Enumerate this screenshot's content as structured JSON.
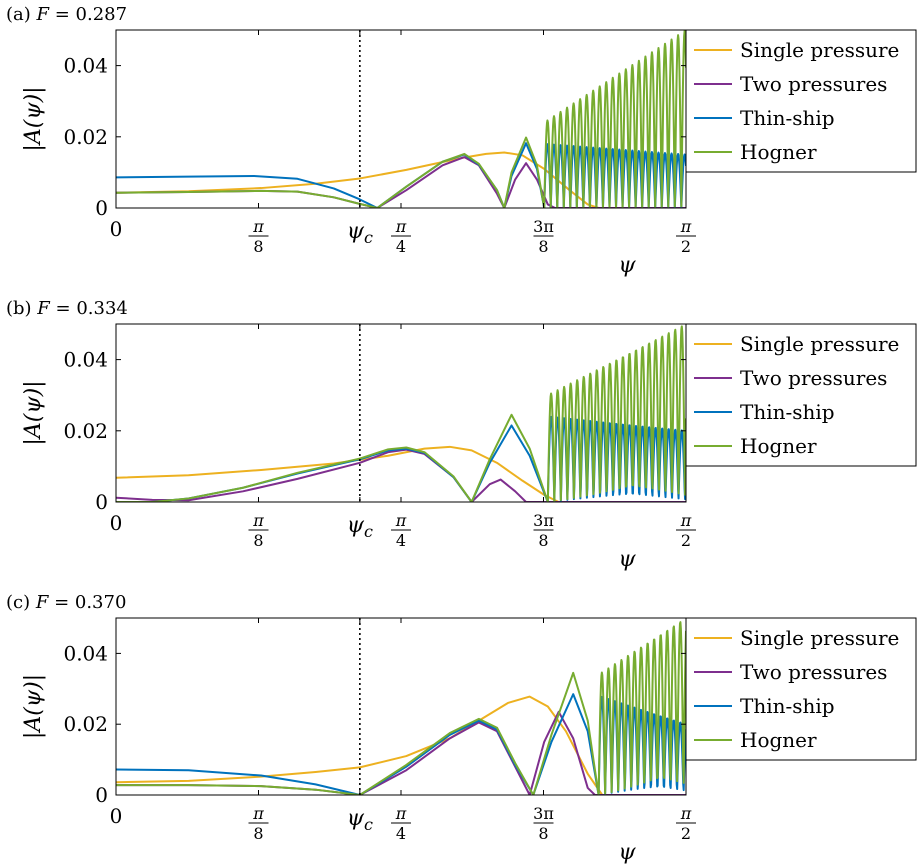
{
  "chart_data": [
    {
      "type": "line",
      "title": "(a) F = 0.287",
      "title_prefix": "(a) ",
      "title_var": "F",
      "title_value": " = 0.287",
      "xlabel": "ψ",
      "ylabel": "|A(ψ)|",
      "xlim": [
        0,
        1.5708
      ],
      "ylim": [
        0,
        0.05
      ],
      "x_ticks": [
        {
          "value": 0,
          "label": "0"
        },
        {
          "value": 0.3927,
          "num": "π",
          "den": "8"
        },
        {
          "value": 0.672,
          "label": "ψc",
          "main": "ψ",
          "sub": "c"
        },
        {
          "value": 0.7854,
          "num": "π",
          "den": "4"
        },
        {
          "value": 1.1781,
          "num": "3π",
          "den": "8"
        },
        {
          "value": 1.5708,
          "num": "π",
          "den": "2"
        }
      ],
      "y_ticks": [
        {
          "value": 0,
          "label": "0"
        },
        {
          "value": 0.02,
          "label": "0.02"
        },
        {
          "value": 0.04,
          "label": "0.04"
        }
      ],
      "psi_c": 0.672,
      "legend_position": "right",
      "series": [
        {
          "name": "Single pressure",
          "color": "#edb120",
          "points": [
            [
              0,
              0.0043
            ],
            [
              0.2,
              0.0047
            ],
            [
              0.4,
              0.0056
            ],
            [
              0.55,
              0.0068
            ],
            [
              0.672,
              0.0083
            ],
            [
              0.8,
              0.0107
            ],
            [
              0.95,
              0.014
            ],
            [
              1.02,
              0.0152
            ],
            [
              1.07,
              0.0156
            ],
            [
              1.12,
              0.0148
            ],
            [
              1.18,
              0.011
            ],
            [
              1.25,
              0.005
            ],
            [
              1.3,
              0.001
            ],
            [
              1.33,
              0
            ],
            [
              1.5708,
              0
            ]
          ]
        },
        {
          "name": "Two pressures",
          "color": "#7e2f8e",
          "points": [
            [
              0,
              0.0043
            ],
            [
              0.2,
              0.0045
            ],
            [
              0.4,
              0.0048
            ],
            [
              0.5,
              0.0046
            ],
            [
              0.6,
              0.003
            ],
            [
              0.67,
              0.0012
            ],
            [
              0.72,
              0
            ],
            [
              0.8,
              0.005
            ],
            [
              0.9,
              0.012
            ],
            [
              0.96,
              0.0143
            ],
            [
              1.0,
              0.012
            ],
            [
              1.05,
              0.004
            ],
            [
              1.07,
              0
            ],
            [
              1.1,
              0.008
            ],
            [
              1.13,
              0.0126
            ],
            [
              1.16,
              0.008
            ],
            [
              1.19,
              0.001
            ],
            [
              1.21,
              0
            ],
            [
              1.5708,
              0
            ]
          ]
        },
        {
          "name": "Thin-ship",
          "color": "#0072bd",
          "osc_start": 1.18,
          "osc_end": 1.5708,
          "osc_period": 0.018,
          "osc_amp": [
            0.018,
            0.015
          ],
          "points": [
            [
              0,
              0.0086
            ],
            [
              0.2,
              0.0088
            ],
            [
              0.38,
              0.009
            ],
            [
              0.5,
              0.0082
            ],
            [
              0.6,
              0.0055
            ],
            [
              0.67,
              0.0025
            ],
            [
              0.72,
              0
            ],
            [
              0.8,
              0.006
            ],
            [
              0.9,
              0.013
            ],
            [
              0.96,
              0.015
            ],
            [
              1.0,
              0.0122
            ],
            [
              1.05,
              0.005
            ],
            [
              1.07,
              0
            ],
            [
              1.09,
              0.009
            ],
            [
              1.13,
              0.0182
            ],
            [
              1.16,
              0.011
            ],
            [
              1.18,
              0
            ]
          ]
        },
        {
          "name": "Hogner",
          "color": "#77ac30",
          "osc_start": 1.18,
          "osc_end": 1.5708,
          "osc_period": 0.018,
          "osc_amp": [
            0.024,
            0.05
          ],
          "points": [
            [
              0,
              0.0043
            ],
            [
              0.2,
              0.0045
            ],
            [
              0.4,
              0.0048
            ],
            [
              0.5,
              0.0046
            ],
            [
              0.6,
              0.003
            ],
            [
              0.67,
              0.0012
            ],
            [
              0.72,
              0
            ],
            [
              0.8,
              0.006
            ],
            [
              0.9,
              0.013
            ],
            [
              0.96,
              0.0152
            ],
            [
              1.0,
              0.0124
            ],
            [
              1.05,
              0.005
            ],
            [
              1.07,
              0
            ],
            [
              1.09,
              0.01
            ],
            [
              1.13,
              0.0198
            ],
            [
              1.16,
              0.012
            ],
            [
              1.18,
              0
            ]
          ]
        }
      ]
    },
    {
      "type": "line",
      "title": "(b) F = 0.334",
      "title_prefix": "(b) ",
      "title_var": "F",
      "title_value": " = 0.334",
      "xlabel": "ψ",
      "ylabel": "|A(ψ)|",
      "xlim": [
        0,
        1.5708
      ],
      "ylim": [
        0,
        0.05
      ],
      "x_ticks": [
        {
          "value": 0,
          "label": "0"
        },
        {
          "value": 0.3927,
          "num": "π",
          "den": "8"
        },
        {
          "value": 0.672,
          "label": "ψc",
          "main": "ψ",
          "sub": "c"
        },
        {
          "value": 0.7854,
          "num": "π",
          "den": "4"
        },
        {
          "value": 1.1781,
          "num": "3π",
          "den": "8"
        },
        {
          "value": 1.5708,
          "num": "π",
          "den": "2"
        }
      ],
      "y_ticks": [
        {
          "value": 0,
          "label": "0"
        },
        {
          "value": 0.02,
          "label": "0.02"
        },
        {
          "value": 0.04,
          "label": "0.04"
        }
      ],
      "psi_c": 0.672,
      "legend_position": "right",
      "series": [
        {
          "name": "Single pressure",
          "color": "#edb120",
          "points": [
            [
              0,
              0.0068
            ],
            [
              0.2,
              0.0075
            ],
            [
              0.4,
              0.009
            ],
            [
              0.6,
              0.0108
            ],
            [
              0.75,
              0.013
            ],
            [
              0.85,
              0.015
            ],
            [
              0.92,
              0.0155
            ],
            [
              0.98,
              0.0145
            ],
            [
              1.05,
              0.011
            ],
            [
              1.12,
              0.006
            ],
            [
              1.18,
              0.002
            ],
            [
              1.22,
              0
            ],
            [
              1.5708,
              0
            ]
          ]
        },
        {
          "name": "Two pressures",
          "color": "#7e2f8e",
          "points": [
            [
              0,
              0.0012
            ],
            [
              0.1,
              0.0006
            ],
            [
              0.2,
              0.0005
            ],
            [
              0.35,
              0.003
            ],
            [
              0.5,
              0.0065
            ],
            [
              0.672,
              0.011
            ],
            [
              0.75,
              0.014
            ],
            [
              0.8,
              0.0147
            ],
            [
              0.85,
              0.0135
            ],
            [
              0.93,
              0.007
            ],
            [
              0.98,
              0
            ],
            [
              1.03,
              0.005
            ],
            [
              1.06,
              0.0063
            ],
            [
              1.1,
              0.003
            ],
            [
              1.13,
              0
            ],
            [
              1.5708,
              0
            ]
          ]
        },
        {
          "name": "Thin-ship",
          "color": "#0072bd",
          "osc_start": 1.19,
          "osc_end": 1.5708,
          "osc_period": 0.018,
          "osc_amp": [
            0.024,
            0.02
          ],
          "points": [
            [
              0,
              0
            ],
            [
              0.1,
              0
            ],
            [
              0.2,
              0.001
            ],
            [
              0.35,
              0.004
            ],
            [
              0.5,
              0.008
            ],
            [
              0.672,
              0.012
            ],
            [
              0.75,
              0.0145
            ],
            [
              0.8,
              0.015
            ],
            [
              0.85,
              0.0138
            ],
            [
              0.93,
              0.007
            ],
            [
              0.98,
              0
            ],
            [
              1.03,
              0.011
            ],
            [
              1.09,
              0.0215
            ],
            [
              1.14,
              0.013
            ],
            [
              1.19,
              0
            ]
          ]
        },
        {
          "name": "Hogner",
          "color": "#77ac30",
          "osc_start": 1.19,
          "osc_end": 1.5708,
          "osc_period": 0.018,
          "osc_amp": [
            0.03,
            0.05
          ],
          "points": [
            [
              0,
              0
            ],
            [
              0.1,
              0
            ],
            [
              0.2,
              0.001
            ],
            [
              0.35,
              0.004
            ],
            [
              0.5,
              0.0082
            ],
            [
              0.672,
              0.0122
            ],
            [
              0.75,
              0.0148
            ],
            [
              0.8,
              0.0153
            ],
            [
              0.85,
              0.014
            ],
            [
              0.93,
              0.0072
            ],
            [
              0.98,
              0
            ],
            [
              1.03,
              0.012
            ],
            [
              1.09,
              0.0245
            ],
            [
              1.14,
              0.015
            ],
            [
              1.19,
              0
            ]
          ]
        }
      ]
    },
    {
      "type": "line",
      "title": "(c) F = 0.370",
      "title_prefix": "(c) ",
      "title_var": "F",
      "title_value": " = 0.370",
      "xlabel": "ψ",
      "ylabel": "|A(ψ)|",
      "xlim": [
        0,
        1.5708
      ],
      "ylim": [
        0,
        0.05
      ],
      "x_ticks": [
        {
          "value": 0,
          "label": "0"
        },
        {
          "value": 0.3927,
          "num": "π",
          "den": "8"
        },
        {
          "value": 0.672,
          "label": "ψc",
          "main": "ψ",
          "sub": "c"
        },
        {
          "value": 0.7854,
          "num": "π",
          "den": "4"
        },
        {
          "value": 1.1781,
          "num": "3π",
          "den": "8"
        },
        {
          "value": 1.5708,
          "num": "π",
          "den": "2"
        }
      ],
      "y_ticks": [
        {
          "value": 0,
          "label": "0"
        },
        {
          "value": 0.02,
          "label": "0.02"
        },
        {
          "value": 0.04,
          "label": "0.04"
        }
      ],
      "psi_c": 0.672,
      "legend_position": "right",
      "series": [
        {
          "name": "Single pressure",
          "color": "#edb120",
          "points": [
            [
              0,
              0.0036
            ],
            [
              0.2,
              0.004
            ],
            [
              0.4,
              0.0052
            ],
            [
              0.55,
              0.0065
            ],
            [
              0.672,
              0.0078
            ],
            [
              0.8,
              0.011
            ],
            [
              0.92,
              0.016
            ],
            [
              1.0,
              0.021
            ],
            [
              1.08,
              0.026
            ],
            [
              1.14,
              0.0278
            ],
            [
              1.19,
              0.025
            ],
            [
              1.24,
              0.018
            ],
            [
              1.3,
              0.006
            ],
            [
              1.34,
              0
            ],
            [
              1.5708,
              0
            ]
          ]
        },
        {
          "name": "Two pressures",
          "color": "#7e2f8e",
          "points": [
            [
              0,
              0.0028
            ],
            [
              0.2,
              0.0028
            ],
            [
              0.4,
              0.0025
            ],
            [
              0.55,
              0.0015
            ],
            [
              0.672,
              0
            ],
            [
              0.8,
              0.007
            ],
            [
              0.92,
              0.016
            ],
            [
              1.0,
              0.0205
            ],
            [
              1.05,
              0.018
            ],
            [
              1.1,
              0.008
            ],
            [
              1.14,
              0
            ],
            [
              1.18,
              0.015
            ],
            [
              1.22,
              0.0235
            ],
            [
              1.26,
              0.016
            ],
            [
              1.3,
              0.002
            ],
            [
              1.32,
              0
            ],
            [
              1.5708,
              0
            ]
          ]
        },
        {
          "name": "Thin-ship",
          "color": "#0072bd",
          "osc_start": 1.33,
          "osc_end": 1.5708,
          "osc_period": 0.018,
          "osc_amp": [
            0.028,
            0.02
          ],
          "points": [
            [
              0,
              0.0072
            ],
            [
              0.2,
              0.007
            ],
            [
              0.4,
              0.0055
            ],
            [
              0.55,
              0.003
            ],
            [
              0.672,
              0
            ],
            [
              0.8,
              0.008
            ],
            [
              0.92,
              0.017
            ],
            [
              1.0,
              0.021
            ],
            [
              1.05,
              0.0185
            ],
            [
              1.1,
              0.0085
            ],
            [
              1.15,
              0
            ],
            [
              1.2,
              0.015
            ],
            [
              1.26,
              0.0285
            ],
            [
              1.3,
              0.018
            ],
            [
              1.33,
              0
            ]
          ]
        },
        {
          "name": "Hogner",
          "color": "#77ac30",
          "osc_start": 1.33,
          "osc_end": 1.5708,
          "osc_period": 0.018,
          "osc_amp": [
            0.034,
            0.05
          ],
          "points": [
            [
              0,
              0.0028
            ],
            [
              0.2,
              0.0028
            ],
            [
              0.4,
              0.0025
            ],
            [
              0.55,
              0.0015
            ],
            [
              0.672,
              0
            ],
            [
              0.8,
              0.0085
            ],
            [
              0.92,
              0.0175
            ],
            [
              1.0,
              0.0215
            ],
            [
              1.05,
              0.019
            ],
            [
              1.1,
              0.009
            ],
            [
              1.15,
              0
            ],
            [
              1.2,
              0.017
            ],
            [
              1.26,
              0.0345
            ],
            [
              1.3,
              0.021
            ],
            [
              1.33,
              0
            ]
          ]
        }
      ]
    }
  ]
}
